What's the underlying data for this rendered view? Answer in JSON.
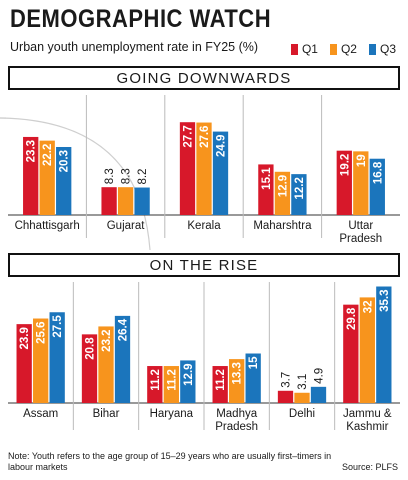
{
  "header": {
    "title": "DEMOGRAPHIC WATCH",
    "subtitle": "Urban youth unemployment rate in FY25 (%)"
  },
  "legend": [
    {
      "label": "Q1",
      "color": "#d7182a"
    },
    {
      "label": "Q2",
      "color": "#f7941d"
    },
    {
      "label": "Q3",
      "color": "#1b75bc"
    }
  ],
  "footer": {
    "note": "Note: Youth refers to the age group of 15–29 years who are usually first–timers in  labour markets",
    "source": "Source: PLFS"
  },
  "chart_data": [
    {
      "type": "bar",
      "title": "GOING DOWNWARDS",
      "categories": [
        [
          "Chhattisgarh"
        ],
        [
          "Gujarat"
        ],
        [
          "Kerala"
        ],
        [
          "Maharshtra"
        ],
        [
          "Uttar",
          "Pradesh"
        ]
      ],
      "series": [
        {
          "name": "Q1",
          "values": [
            23.3,
            8.3,
            27.7,
            15.1,
            19.2
          ],
          "labels": [
            "23.3",
            "8.3",
            "27.7",
            "15.1",
            "19.2"
          ]
        },
        {
          "name": "Q2",
          "values": [
            22.2,
            8.3,
            27.6,
            12.9,
            19
          ],
          "labels": [
            "22.2",
            "8.3",
            "27.6",
            "12.9",
            "19"
          ]
        },
        {
          "name": "Q3",
          "values": [
            20.3,
            8.2,
            24.9,
            12.2,
            16.8
          ],
          "labels": [
            "20.3",
            "8.2",
            "24.9",
            "12.2",
            "16.8"
          ]
        }
      ],
      "ylim": [
        0,
        30
      ],
      "grid": false
    },
    {
      "type": "bar",
      "title": "ON THE RISE",
      "categories": [
        [
          "Assam"
        ],
        [
          "Bihar"
        ],
        [
          "Haryana"
        ],
        [
          "Madhya",
          "Pradesh"
        ],
        [
          "Delhi"
        ],
        [
          "Jammu &",
          "Kashmir"
        ]
      ],
      "series": [
        {
          "name": "Q1",
          "values": [
            23.9,
            20.8,
            11.2,
            11.2,
            3.7,
            29.8
          ],
          "labels": [
            "23.9",
            "20.8",
            "11.2",
            "11.2",
            "3.7",
            "29.8"
          ]
        },
        {
          "name": "Q2",
          "values": [
            25.6,
            23.2,
            11.2,
            13.3,
            3.1,
            32
          ],
          "labels": [
            "25.6",
            "23.2",
            "11.2",
            "13.3",
            "3.1",
            "32"
          ]
        },
        {
          "name": "Q3",
          "values": [
            27.5,
            26.4,
            12.9,
            15,
            4.9,
            35.3
          ],
          "labels": [
            "27.5",
            "26.4",
            "12.9",
            "15",
            "4.9",
            "35.3"
          ]
        }
      ],
      "ylim": [
        0,
        36
      ],
      "grid": false
    }
  ]
}
